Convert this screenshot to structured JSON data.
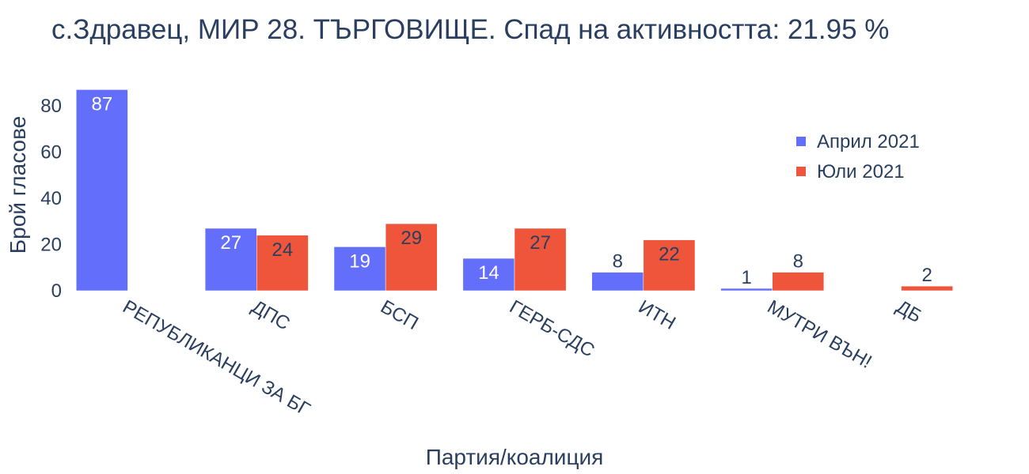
{
  "chart_data": {
    "type": "bar",
    "title": "с.Здравец, МИР 28. ТЪРГОВИЩЕ. Спад на активността: 21.95 %",
    "xlabel": "Партия/коалиция",
    "ylabel": "Брой гласове",
    "categories": [
      "РЕПУБЛИКАНЦИ ЗА БГ",
      "ДПС",
      "БСП",
      "ГЕРБ-СДС",
      "ИТН",
      "МУТРИ ВЪН!",
      "ДБ"
    ],
    "series": [
      {
        "name": "Април 2021",
        "color": "#636efa",
        "values": [
          87,
          27,
          19,
          14,
          8,
          1,
          0
        ]
      },
      {
        "name": "Юли 2021",
        "color": "#ef553b",
        "values": [
          0,
          24,
          29,
          27,
          22,
          8,
          2
        ]
      }
    ],
    "ylim": [
      0,
      91.6
    ],
    "yticks": [
      0,
      20,
      40,
      60,
      80
    ],
    "grid": false,
    "legend_position": "top-right"
  }
}
